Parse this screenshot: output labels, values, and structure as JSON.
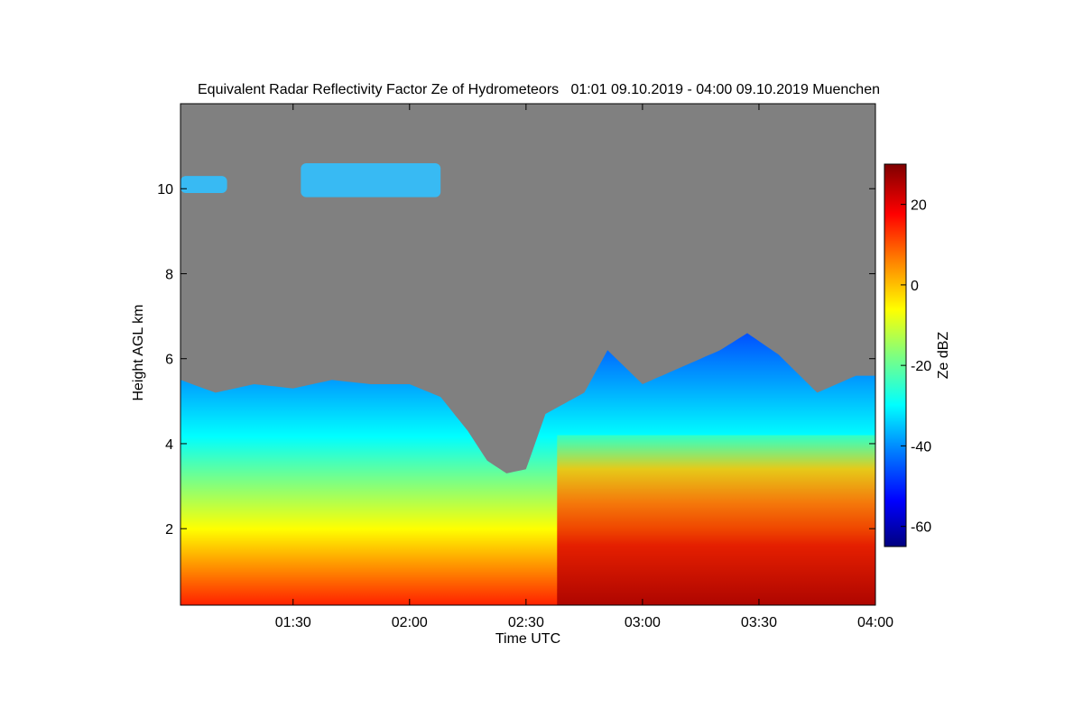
{
  "chart_data": {
    "type": "heatmap",
    "title": "Equivalent Radar Reflectivity Factor Ze of Hydrometeors   01:01 09.10.2019 - 04:00 09.10.2019 Muenchen",
    "xlabel": "Time UTC",
    "ylabel": "Height AGL km",
    "xlim": [
      "01:01",
      "04:00"
    ],
    "ylim": [
      0.2,
      12
    ],
    "x_ticks": [
      {
        "t": 90,
        "label": "01:30"
      },
      {
        "t": 120,
        "label": "02:00"
      },
      {
        "t": 150,
        "label": "02:30"
      },
      {
        "t": 180,
        "label": "03:00"
      },
      {
        "t": 210,
        "label": "03:30"
      },
      {
        "t": 240,
        "label": "04:00"
      }
    ],
    "y_ticks": [
      {
        "v": 2,
        "label": "2"
      },
      {
        "v": 4,
        "label": "4"
      },
      {
        "v": 6,
        "label": "6"
      },
      {
        "v": 8,
        "label": "8"
      },
      {
        "v": 10,
        "label": "10"
      }
    ],
    "colorbar": {
      "label": "Ze dBZ",
      "range": [
        -65,
        30
      ],
      "ticks": [
        {
          "v": 20,
          "label": "20"
        },
        {
          "v": 0,
          "label": "0"
        },
        {
          "v": -20,
          "label": "-20"
        },
        {
          "v": -40,
          "label": "-40"
        },
        {
          "v": -60,
          "label": "-60"
        }
      ],
      "colormap": [
        "#00007f",
        "#0000ff",
        "#007fff",
        "#00ffff",
        "#7fff7f",
        "#ffff00",
        "#ff7f00",
        "#ff0000",
        "#7f0000"
      ]
    },
    "background_color": "#808080",
    "echo_top_profile_km": [
      {
        "t": 61,
        "top": 5.5
      },
      {
        "t": 70,
        "top": 5.2
      },
      {
        "t": 80,
        "top": 5.4
      },
      {
        "t": 90,
        "top": 5.3
      },
      {
        "t": 100,
        "top": 5.5
      },
      {
        "t": 110,
        "top": 5.4
      },
      {
        "t": 120,
        "top": 5.4
      },
      {
        "t": 128,
        "top": 5.1
      },
      {
        "t": 135,
        "top": 4.3
      },
      {
        "t": 140,
        "top": 3.6
      },
      {
        "t": 145,
        "top": 3.3
      },
      {
        "t": 150,
        "top": 3.4
      },
      {
        "t": 155,
        "top": 4.7
      },
      {
        "t": 165,
        "top": 5.2
      },
      {
        "t": 171,
        "top": 6.2
      },
      {
        "t": 180,
        "top": 5.4
      },
      {
        "t": 190,
        "top": 5.8
      },
      {
        "t": 200,
        "top": 6.2
      },
      {
        "t": 207,
        "top": 6.6
      },
      {
        "t": 215,
        "top": 6.1
      },
      {
        "t": 225,
        "top": 5.2
      },
      {
        "t": 235,
        "top": 5.6
      },
      {
        "t": 240,
        "top": 5.6
      }
    ],
    "upper_cloud_layer_km": [
      {
        "t_start": 61,
        "t_end": 73,
        "base": 9.9,
        "top": 10.3
      },
      {
        "t_start": 92,
        "t_end": 128,
        "base": 9.8,
        "top": 10.6
      }
    ]
  }
}
